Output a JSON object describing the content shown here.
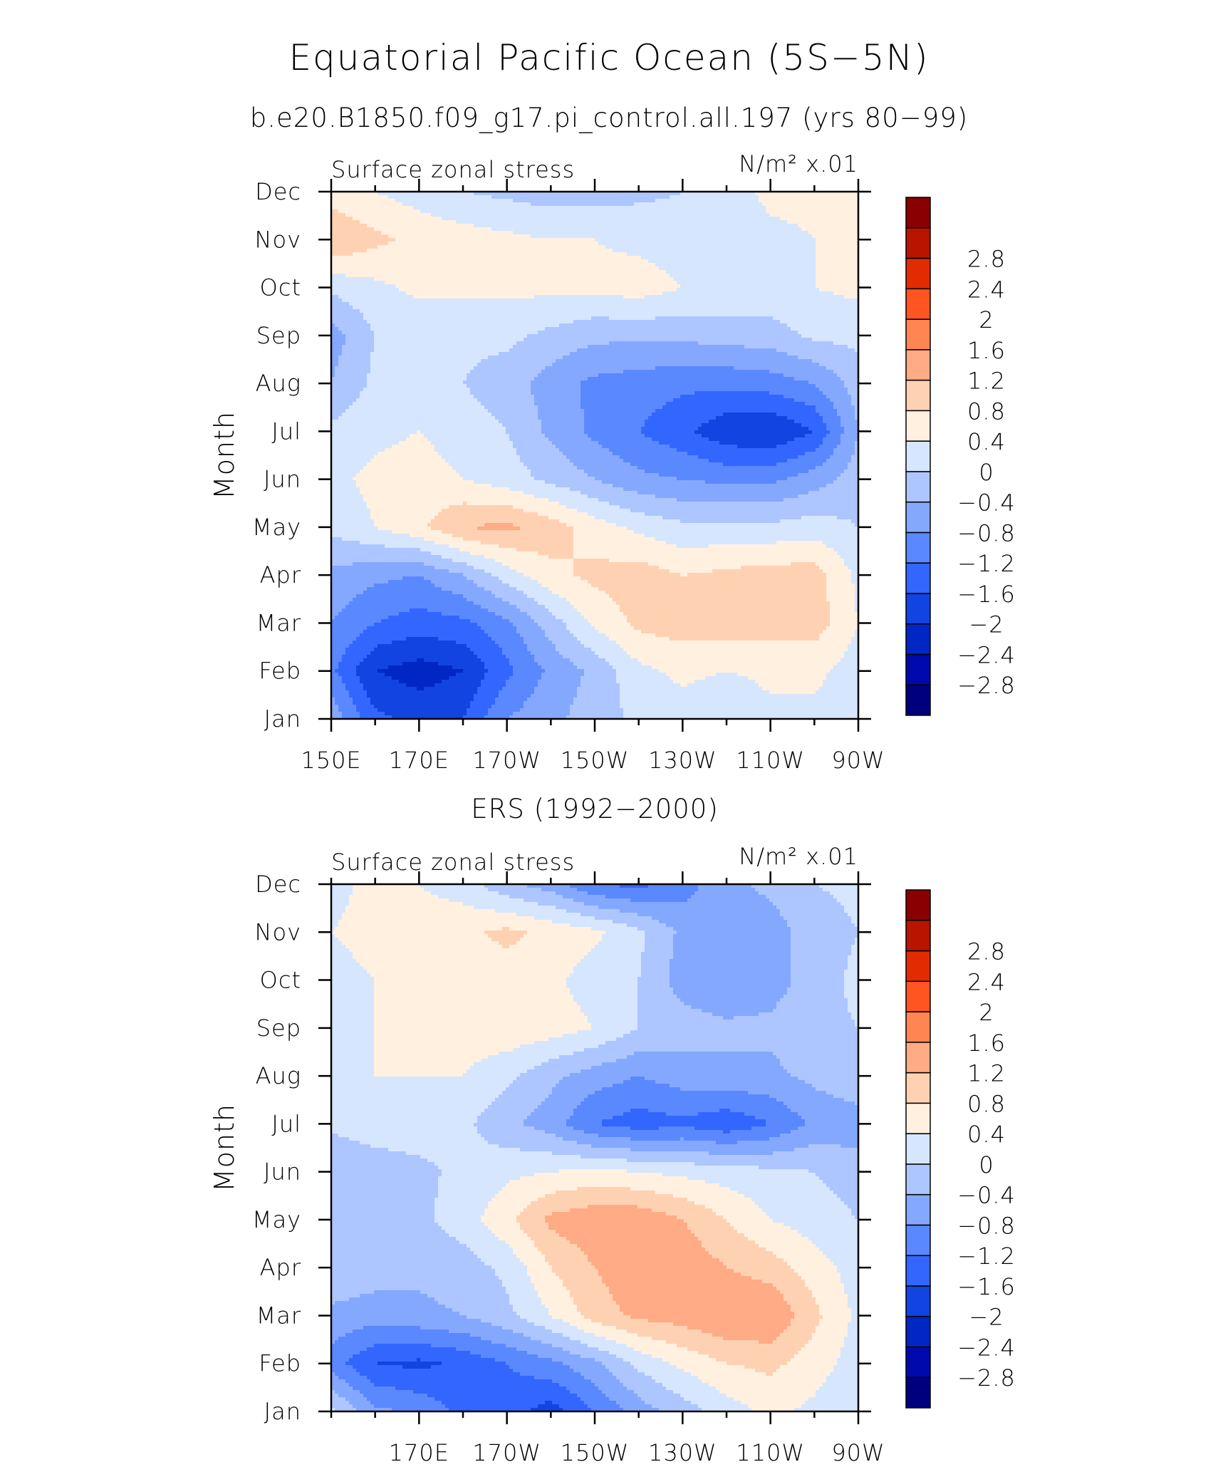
{
  "figure": {
    "title": "Equatorial Pacific Ocean (5S−5N)",
    "subtitle": "b.e20.B1850.f09_g17.pi_control.all.197 (yrs 80−99)"
  },
  "colors": {
    "levels": [
      "#00007f",
      "#0009ad",
      "#0026c4",
      "#1144e0",
      "#3366ff",
      "#5a88ff",
      "#85a8ff",
      "#adc6ff",
      "#d6e6ff",
      "#fff0e0",
      "#ffd1b3",
      "#ffab85",
      "#ff8552",
      "#ff5521",
      "#e02c00",
      "#b81400",
      "#8a0000"
    ]
  },
  "chart_data": [
    {
      "type": "heatmap",
      "title": "",
      "left_string": "Surface zonal stress",
      "right_string": "N/m² x.01",
      "ylabel": "Month",
      "xlabel": "",
      "x_ticks": [
        "150E",
        "170E",
        "170W",
        "150W",
        "130W",
        "110W",
        "90W"
      ],
      "y_ticks": [
        "Jan",
        "Feb",
        "Mar",
        "Apr",
        "May",
        "Jun",
        "Jul",
        "Aug",
        "Sep",
        "Oct",
        "Nov",
        "Dec"
      ],
      "colorbar_labels": [
        "2.8",
        "2.4",
        "2",
        "1.6",
        "1.2",
        "0.8",
        "0.4",
        "0",
        "−0.4",
        "−0.8",
        "−1.2",
        "−1.6",
        "−2",
        "−2.4",
        "−2.8"
      ],
      "levels": [
        -3.2,
        -2.8,
        -2.4,
        -2,
        -1.6,
        -1.2,
        -0.8,
        -0.4,
        0,
        0.4,
        0.8,
        1.2,
        1.6,
        2,
        2.4,
        2.8,
        3.2
      ],
      "x_lon": [
        150,
        160,
        170,
        180,
        190,
        200,
        210,
        220,
        230,
        240,
        250,
        260,
        270
      ],
      "values": [
        [
          -0.5,
          -1.5,
          -1.7,
          -1.6,
          -0.8,
          -0.5,
          -0.2,
          0.1,
          0.2,
          0.0,
          0.3,
          0.3,
          0.1
        ],
        [
          -1.1,
          -2.0,
          -2.2,
          -2.0,
          -1.3,
          -0.7,
          -0.3,
          0.3,
          0.5,
          0.4,
          0.5,
          0.5,
          0.2
        ],
        [
          -0.8,
          -1.2,
          -1.4,
          -1.3,
          -0.9,
          -0.2,
          0.5,
          0.9,
          1.0,
          1.0,
          1.0,
          1.0,
          0.4
        ],
        [
          -0.5,
          -0.7,
          -0.8,
          -0.4,
          0.2,
          0.7,
          0.9,
          1.0,
          0.8,
          0.9,
          1.0,
          1.0,
          0.3
        ],
        [
          0.1,
          0.4,
          0.7,
          1.2,
          1.3,
          1.0,
          0.6,
          0.3,
          0.1,
          0.1,
          0.1,
          0.2,
          0.0
        ],
        [
          0.3,
          0.5,
          0.6,
          0.4,
          0.2,
          -0.1,
          -0.4,
          -0.7,
          -0.8,
          -0.9,
          -0.9,
          -0.6,
          -0.2
        ],
        [
          0.1,
          0.3,
          0.4,
          0.2,
          0.0,
          -0.5,
          -0.9,
          -1.2,
          -1.5,
          -1.9,
          -2.0,
          -1.6,
          -0.4
        ],
        [
          -0.4,
          0.1,
          0.2,
          0.0,
          -0.2,
          -0.6,
          -0.9,
          -1.0,
          -1.1,
          -1.1,
          -1.0,
          -0.8,
          -0.2
        ],
        [
          -0.6,
          0.0,
          0.1,
          0.1,
          0.1,
          -0.1,
          -0.3,
          -0.3,
          -0.3,
          -0.2,
          -0.2,
          0.1,
          0.1
        ],
        [
          0.1,
          0.3,
          0.5,
          0.5,
          0.5,
          0.5,
          0.5,
          0.6,
          0.4,
          0.3,
          0.3,
          0.4,
          0.5
        ],
        [
          1.2,
          0.9,
          0.7,
          0.6,
          0.5,
          0.4,
          0.4,
          0.3,
          0.2,
          0.2,
          0.3,
          0.4,
          0.5
        ],
        [
          0.6,
          0.4,
          0.2,
          0.0,
          -0.1,
          -0.2,
          -0.2,
          -0.1,
          0.0,
          0.2,
          0.5,
          0.5,
          0.5
        ]
      ]
    },
    {
      "type": "heatmap",
      "title": "ERS (1992−2000)",
      "left_string": "Surface zonal stress",
      "right_string": "N/m² x.01",
      "ylabel": "Month",
      "xlabel": "",
      "x_ticks": [
        "170E",
        "170W",
        "150W",
        "130W",
        "110W",
        "90W"
      ],
      "y_ticks": [
        "Jan",
        "Feb",
        "Mar",
        "Apr",
        "May",
        "Jun",
        "Jul",
        "Aug",
        "Sep",
        "Oct",
        "Nov",
        "Dec"
      ],
      "colorbar_labels": [
        "2.8",
        "2.4",
        "2",
        "1.6",
        "1.2",
        "0.8",
        "0.4",
        "0",
        "−0.4",
        "−0.8",
        "−1.2",
        "−1.6",
        "−2",
        "−2.4",
        "−2.8"
      ],
      "levels": [
        -3.2,
        -2.8,
        -2.4,
        -2,
        -1.6,
        -1.2,
        -0.8,
        -0.4,
        0,
        0.4,
        0.8,
        1.2,
        1.6,
        2,
        2.4,
        2.8,
        3.2
      ],
      "x_lon": [
        150,
        160,
        170,
        180,
        190,
        200,
        210,
        220,
        230,
        240,
        250,
        260,
        270
      ],
      "values": [
        [
          0.1,
          -0.7,
          -0.9,
          -1.3,
          -1.4,
          -1.8,
          -1.2,
          -0.6,
          -0.2,
          0.2,
          0.5,
          0.3,
          0.0
        ],
        [
          -1.0,
          -1.6,
          -1.7,
          -1.5,
          -1.2,
          -0.9,
          -0.5,
          0.1,
          0.5,
          0.8,
          0.9,
          0.6,
          0.2
        ],
        [
          -0.5,
          -0.6,
          -0.5,
          -0.4,
          -0.1,
          0.4,
          1.0,
          1.3,
          1.4,
          1.6,
          1.6,
          0.9,
          0.3
        ],
        [
          -0.1,
          -0.2,
          -0.3,
          -0.2,
          0.1,
          0.8,
          1.2,
          1.5,
          1.5,
          1.2,
          1.0,
          0.6,
          0.2
        ],
        [
          -0.1,
          -0.2,
          -0.1,
          0.2,
          0.7,
          1.3,
          1.5,
          1.5,
          1.2,
          0.8,
          0.4,
          0.2,
          0.0
        ],
        [
          -0.4,
          -0.2,
          -0.1,
          0.1,
          0.3,
          0.4,
          0.5,
          0.4,
          0.3,
          0.2,
          0.1,
          0.0,
          -0.2
        ],
        [
          0.1,
          0.2,
          0.2,
          0.1,
          -0.3,
          -0.6,
          -1.2,
          -1.4,
          -1.3,
          -1.5,
          -1.2,
          -0.7,
          -0.6
        ],
        [
          0.3,
          0.4,
          0.4,
          0.4,
          0.1,
          -0.3,
          -0.6,
          -0.8,
          -0.6,
          -0.5,
          -0.5,
          -0.3,
          -0.1
        ],
        [
          0.2,
          0.4,
          0.5,
          0.6,
          0.7,
          0.6,
          0.4,
          0.0,
          -0.2,
          -0.3,
          -0.3,
          -0.1,
          0.0
        ],
        [
          0.3,
          0.4,
          0.5,
          0.6,
          0.6,
          0.5,
          0.2,
          0.0,
          -0.6,
          -0.8,
          -0.6,
          -0.2,
          0.1
        ],
        [
          0.4,
          0.5,
          0.6,
          0.7,
          0.9,
          0.7,
          0.5,
          0.1,
          -0.5,
          -0.7,
          -0.6,
          -0.2,
          0.0
        ],
        [
          0.3,
          0.5,
          0.4,
          0.2,
          -0.3,
          -0.6,
          -1.2,
          -1.3,
          -1.0,
          -0.5,
          -0.3,
          0.0,
          0.1
        ]
      ]
    }
  ]
}
